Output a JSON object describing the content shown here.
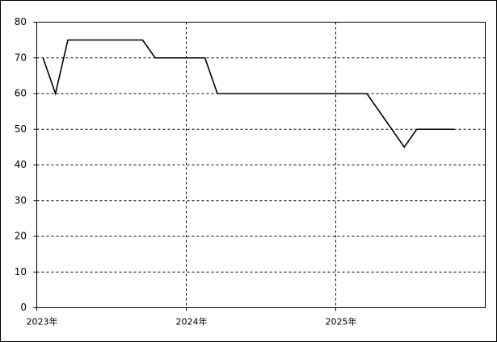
{
  "chart_data": {
    "type": "line",
    "x": [
      2023.042,
      2023.125,
      2023.208,
      2023.708,
      2023.792,
      2024.125,
      2024.208,
      2025.208,
      2025.458,
      2025.542,
      2025.792
    ],
    "series": [
      {
        "color": "#000000",
        "values": [
          70,
          60,
          75,
          75,
          70,
          70,
          60,
          60,
          45,
          50,
          50
        ]
      }
    ],
    "xlim": [
      2023,
      2026
    ],
    "xticks": [
      {
        "value": 2023,
        "label": "2023年"
      },
      {
        "value": 2024,
        "label": "2024年"
      },
      {
        "value": 2025,
        "label": "2025年"
      }
    ],
    "ylim": [
      0,
      80
    ],
    "yticks": [
      0,
      10,
      20,
      30,
      40,
      50,
      60,
      70,
      80
    ],
    "grid": true
  }
}
